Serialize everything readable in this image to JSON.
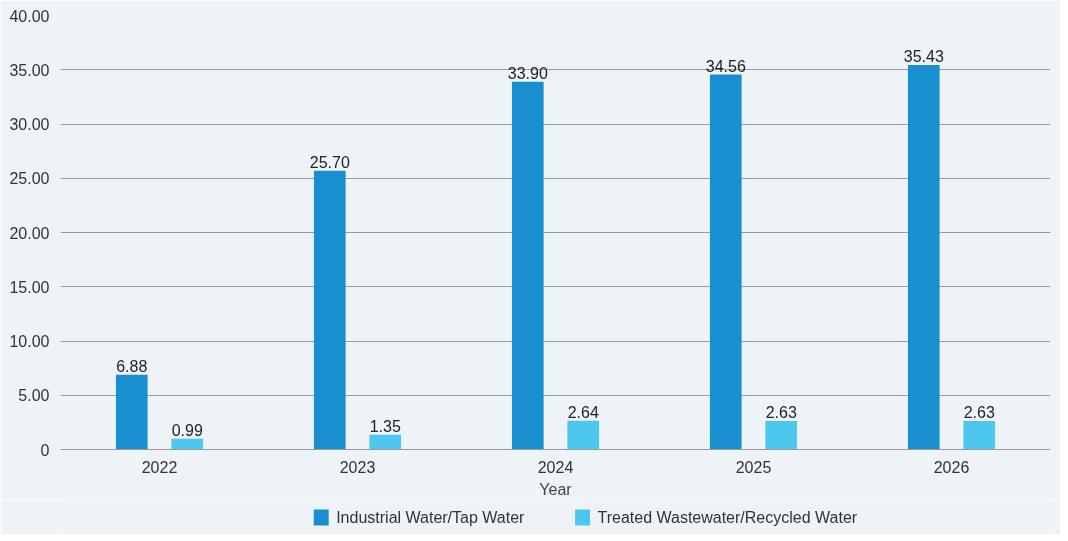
{
  "chart_data": {
    "type": "bar",
    "xlabel": "Year",
    "categories": [
      "2022",
      "2023",
      "2024",
      "2025",
      "2026"
    ],
    "series": [
      {
        "name": "Industrial Water/Tap Water",
        "color": "#1a8fd0",
        "values": [
          6.88,
          25.7,
          33.9,
          34.56,
          35.43
        ],
        "value_labels": [
          "6.88",
          "25.70",
          "33.90",
          "34.56",
          "35.43"
        ]
      },
      {
        "name": "Treated Wastewater/Recycled Water",
        "color": "#4cc8f0",
        "values": [
          0.99,
          1.35,
          2.64,
          2.63,
          2.63
        ],
        "value_labels": [
          "0.99",
          "1.35",
          "2.64",
          "2.63",
          "2.63"
        ]
      }
    ],
    "ylim": [
      0,
      40
    ],
    "yticks": [
      0,
      {
        "value": 5,
        "label": "5.00"
      },
      {
        "value": 10,
        "label": "10.00"
      },
      {
        "value": 15,
        "label": "15.00"
      },
      {
        "value": 20,
        "label": "20.00"
      },
      {
        "value": 25,
        "label": "25.00"
      },
      {
        "value": 30,
        "label": "30.00"
      },
      {
        "value": 35,
        "label": "35.00"
      },
      {
        "value": 40,
        "label": "40.00"
      }
    ],
    "grid": "y",
    "legend": "bottom"
  }
}
